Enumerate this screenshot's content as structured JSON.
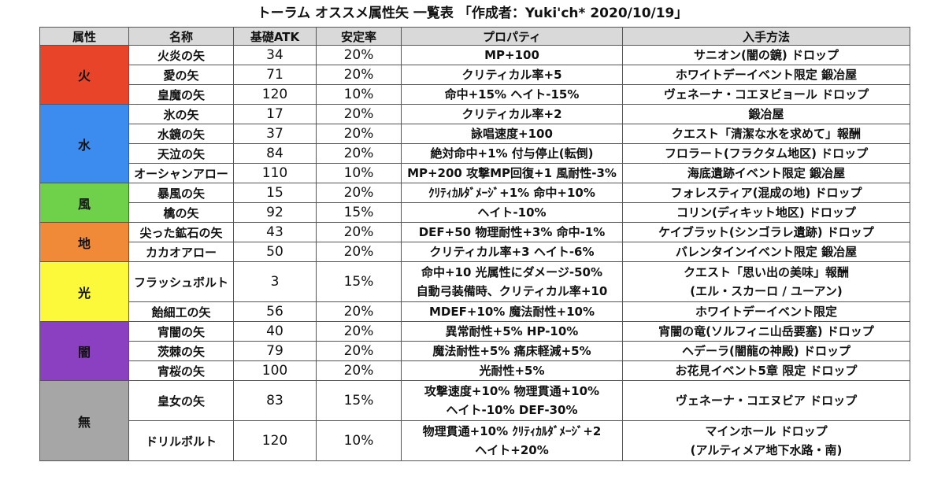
{
  "title": "トーラム オススメ属性矢 一覧表 「作成者：Yuki'ch* 2020/10/19」",
  "headers": [
    "属性",
    "名称",
    "基礎ATK",
    "安定率",
    "プロパティ",
    "入手方法"
  ],
  "groups": [
    {
      "attribute": "火",
      "color": "#e8442a",
      "rows": [
        {
          "name": "火炎の矢",
          "atk": "34",
          "stability": "20%",
          "property": [
            "MP+100"
          ],
          "obtain": [
            "サニオン(闇の鏡) ドロップ"
          ]
        },
        {
          "name": "愛の矢",
          "atk": "71",
          "stability": "20%",
          "property": [
            "クリティカル率+5"
          ],
          "obtain": [
            "ホワイトデーイベント限定 鍛冶屋"
          ]
        },
        {
          "name": "皇魔の矢",
          "atk": "120",
          "stability": "10%",
          "property": [
            "命中+15% ヘイト-15%"
          ],
          "obtain": [
            "ヴェネーナ・コエヌビョール ドロップ"
          ]
        }
      ]
    },
    {
      "attribute": "水",
      "color": "#3c8cf0",
      "rows": [
        {
          "name": "氷の矢",
          "atk": "17",
          "stability": "20%",
          "property": [
            "クリティカル率+2"
          ],
          "obtain": [
            "鍛冶屋"
          ]
        },
        {
          "name": "水鏡の矢",
          "atk": "37",
          "stability": "20%",
          "property": [
            "詠唱速度+100"
          ],
          "obtain": [
            "クエスト「清潔な水を求めて」報酬"
          ]
        },
        {
          "name": "天泣の矢",
          "atk": "84",
          "stability": "20%",
          "property": [
            "絶対命中+1% 付与停止(転倒)"
          ],
          "obtain": [
            "フロラート(フラクタム地区) ドロップ"
          ]
        },
        {
          "name": "オーシャンアロー",
          "atk": "110",
          "stability": "10%",
          "property": [
            "MP+200 攻撃MP回復+1 風耐性-3%"
          ],
          "obtain": [
            "海底遺跡イベント限定 鍛冶屋"
          ]
        }
      ]
    },
    {
      "attribute": "風",
      "color": "#6fd14a",
      "rows": [
        {
          "name": "暴風の矢",
          "atk": "15",
          "stability": "20%",
          "property": [
            "ｸﾘﾃｨｶﾙﾀﾞﾒｰｼﾞ+1% 命中+10%"
          ],
          "obtain": [
            "フォレスティア(混成の地) ドロップ"
          ]
        },
        {
          "name": "檎の矢",
          "atk": "92",
          "stability": "15%",
          "property": [
            "ヘイト-10%"
          ],
          "obtain": [
            "コリン(ディキット地区) ドロップ"
          ]
        }
      ]
    },
    {
      "attribute": "地",
      "color": "#f08a38",
      "rows": [
        {
          "name": "尖った鉱石の矢",
          "atk": "43",
          "stability": "20%",
          "property": [
            "DEF+50 物理耐性+3% 命中-1%"
          ],
          "obtain": [
            "ケイブラット(シンゴラレ遺跡) ドロップ"
          ]
        },
        {
          "name": "カカオアロー",
          "atk": "50",
          "stability": "20%",
          "property": [
            "クリティカル率+3 ヘイト-6%"
          ],
          "obtain": [
            "バレンタインイベント限定 鍛冶屋"
          ]
        }
      ]
    },
    {
      "attribute": "光",
      "color": "#fbf93a",
      "rows": [
        {
          "name": "フラッシュボルト",
          "atk": "3",
          "stability": "15%",
          "property": [
            "命中+10 光属性にダメージ-50%",
            "自動弓装備時、クリティカル率+10"
          ],
          "obtain": [
            "クエスト「思い出の美味」報酬",
            "(エル・スカーロ / ユーアン)"
          ]
        },
        {
          "name": "飴細工の矢",
          "atk": "56",
          "stability": "20%",
          "property": [
            "MDEF+10% 魔法耐性+10%"
          ],
          "obtain": [
            "ホワイトデーイベント限定"
          ]
        }
      ]
    },
    {
      "attribute": "闇",
      "color": "#8b3fc1",
      "rows": [
        {
          "name": "宵闇の矢",
          "atk": "40",
          "stability": "20%",
          "property": [
            "異常耐性+5% HP-10%"
          ],
          "obtain": [
            "宵闇の竜(ソルフィニ山岳要塞) ドロップ"
          ]
        },
        {
          "name": "茨棘の矢",
          "atk": "79",
          "stability": "20%",
          "property": [
            "魔法耐性+5% 痛床軽減+5%"
          ],
          "obtain": [
            "ヘデーラ(闇龍の神殿) ドロップ"
          ]
        },
        {
          "name": "宵桜の矢",
          "atk": "100",
          "stability": "20%",
          "property": [
            "光耐性+5%"
          ],
          "obtain": [
            "お花見イベント5章 限定 ドロップ"
          ]
        }
      ]
    },
    {
      "attribute": "無",
      "color": "#a6a6a6",
      "rows": [
        {
          "name": "皇女の矢",
          "atk": "83",
          "stability": "15%",
          "property": [
            "攻撃速度+10% 物理貫通+10%",
            "ヘイト-10% DEF-30%"
          ],
          "obtain": [
            "ヴェネーナ・コエヌビア ドロップ"
          ]
        },
        {
          "name": "ドリルボルト",
          "atk": "120",
          "stability": "10%",
          "property": [
            "物理貫通+10% ｸﾘﾃｨｶﾙﾀﾞﾒｰｼﾞ+2",
            "ヘイト+20%"
          ],
          "obtain": [
            "マインホール ドロップ",
            "(アルティメア地下水路・南)"
          ]
        }
      ]
    }
  ]
}
